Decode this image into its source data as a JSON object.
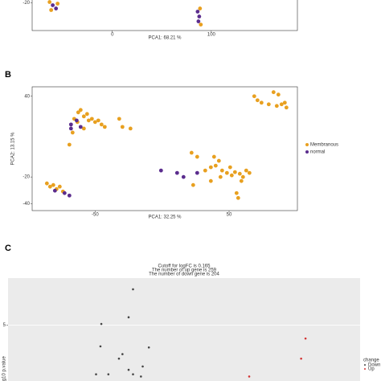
{
  "panels": [
    "B",
    "C"
  ],
  "chart_data": [
    {
      "type": "scatter",
      "x_label": "PCA1: 68.21 %",
      "xlim": [
        -81,
        187
      ],
      "ylim": [
        -48,
        60
      ],
      "xticks": [
        0,
        100
      ],
      "yticks": [
        -20
      ],
      "series": [
        {
          "color": "#e8a020",
          "x": [
            -63.4,
            -61.8,
            -55.3,
            89.4,
            88.6
          ],
          "values": [
            -19.2,
            -27.3,
            -20.8,
            -42,
            -25.7
          ]
        },
        {
          "color": "#5b2d8e",
          "x": [
            -60.2,
            -56.9,
            86.2,
            87.8,
            87
          ],
          "values": [
            -22.4,
            -25.7,
            -28.9,
            -33.8,
            -38.7
          ]
        }
      ]
    },
    {
      "type": "scatter",
      "x_label": "PCA1: 32.25 %",
      "y_label": "PCA2: 13.15 %",
      "xlim": [
        -97,
        101
      ],
      "ylim": [
        -45,
        47
      ],
      "xticks": [
        -50,
        50
      ],
      "yticks": [
        40,
        -20,
        -40
      ],
      "legend": "right",
      "series": [
        {
          "name": "Membranous",
          "color": "#e8a020",
          "x": [
            -62.6,
            -60.8,
            -58.4,
            -56,
            -65.6,
            -63.2,
            -54.8,
            -52.4,
            -50,
            -47.6,
            -45.2,
            -42.8,
            -58.4,
            -66.8,
            -69.2,
            -32,
            -29.6,
            -23.6,
            68.8,
            71.2,
            74.2,
            83.2,
            86.8,
            89.2,
            91.6,
            92.8,
            85.6,
            79.6,
            -86,
            -83.6,
            -81.2,
            -78.8,
            -76.4,
            -74,
            22,
            26.2,
            32.2,
            36.4,
            40,
            42.4,
            44.8,
            48.4,
            52,
            54.4,
            58,
            60.4,
            62.8,
            59.2,
            55.6,
            56.8,
            23.2,
            36.4,
            43.6,
            50.8,
            65.2,
            38.8
          ],
          "values": [
            28,
            29.8,
            25,
            26.8,
            23.2,
            20.8,
            22,
            23.2,
            20.8,
            22,
            19,
            17.2,
            16,
            13,
            4,
            23.2,
            17.2,
            16,
            40,
            37,
            35.2,
            43,
            41.2,
            34,
            35.2,
            31.6,
            32.8,
            34,
            -24.8,
            -27.2,
            -26,
            -29,
            -27.2,
            -30.8,
            -2,
            -5,
            -15.2,
            -12.8,
            -11.6,
            -8,
            -15.2,
            -17,
            -18.8,
            -16.4,
            -17.6,
            -20,
            -15.2,
            -23,
            -32,
            -35.6,
            -26,
            -23,
            -20,
            -12.8,
            -17,
            -5
          ]
        },
        {
          "name": "normal",
          "color": "#5b2d8e",
          "x": [
            -68,
            -63.8,
            -60.8,
            -68,
            -80,
            -72.8,
            -69.2,
            -0.8,
            11.2,
            16,
            26.2
          ],
          "values": [
            19,
            22,
            17.2,
            16,
            -30.2,
            -32,
            -33.8,
            -15.2,
            -17,
            -20,
            -17
          ]
        }
      ]
    },
    {
      "type": "scatter",
      "title_lines": [
        "Cutoff for logFC is 0.165",
        "The number of up gene is 259",
        "The number of down gene is 204"
      ],
      "y_label": "-log10 p.value",
      "legend_title": "change",
      "legend": "right",
      "xlim": [
        -2,
        2
      ],
      "ylim": [
        0,
        9.2
      ],
      "yticks": [
        5
      ],
      "grid": true,
      "panel_background": "#ebebeb",
      "series": [
        {
          "name": "Down",
          "color": "#444444",
          "x": [
            -0.58,
            -0.94,
            -0.63,
            -0.95,
            -0.74,
            -0.7,
            -0.4,
            -0.47,
            -0.63,
            -0.86,
            -0.58,
            -0.49,
            -1.0
          ],
          "values": [
            8.2,
            5.1,
            5.7,
            3.1,
            2.0,
            2.4,
            3.0,
            1.3,
            1.0,
            0.6,
            0.6,
            0.4,
            0.6
          ]
        },
        {
          "name": "Up",
          "color": "#d33333",
          "x": [
            1.38,
            1.33,
            0.74
          ],
          "values": [
            3.8,
            2.0,
            0.4
          ]
        }
      ]
    }
  ]
}
